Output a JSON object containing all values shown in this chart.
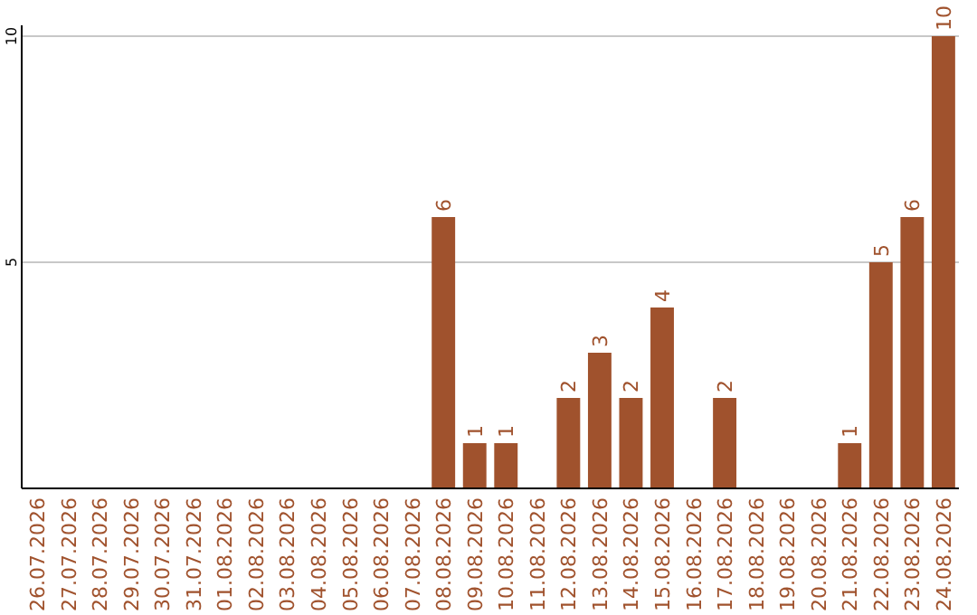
{
  "chart_data": {
    "type": "bar",
    "categories": [
      "26.07.2026",
      "27.07.2026",
      "28.07.2026",
      "29.07.2026",
      "30.07.2026",
      "31.07.2026",
      "01.08.2026",
      "02.08.2026",
      "03.08.2026",
      "04.08.2026",
      "05.08.2026",
      "06.08.2026",
      "07.08.2026",
      "08.08.2026",
      "09.08.2026",
      "10.08.2026",
      "11.08.2026",
      "12.08.2026",
      "13.08.2026",
      "14.08.2026",
      "15.08.2026",
      "16.08.2026",
      "17.08.2026",
      "18.08.2026",
      "19.08.2026",
      "20.08.2026",
      "21.08.2026",
      "22.08.2026",
      "23.08.2026",
      "24.08.2026"
    ],
    "values": [
      0,
      0,
      0,
      0,
      0,
      0,
      0,
      0,
      0,
      0,
      0,
      0,
      0,
      6,
      1,
      1,
      0,
      2,
      3,
      2,
      4,
      0,
      2,
      0,
      0,
      0,
      1,
      5,
      6,
      10
    ],
    "value_labels": [
      null,
      null,
      null,
      null,
      null,
      null,
      null,
      null,
      null,
      null,
      null,
      null,
      null,
      "6",
      "1",
      "1",
      null,
      "2",
      "3",
      "2",
      "4",
      null,
      "2",
      null,
      null,
      null,
      "1",
      "5",
      "6",
      "10"
    ],
    "color": "#a0522d",
    "ylim": [
      0,
      10
    ],
    "yticks": [
      5,
      10
    ],
    "grid": "y"
  }
}
